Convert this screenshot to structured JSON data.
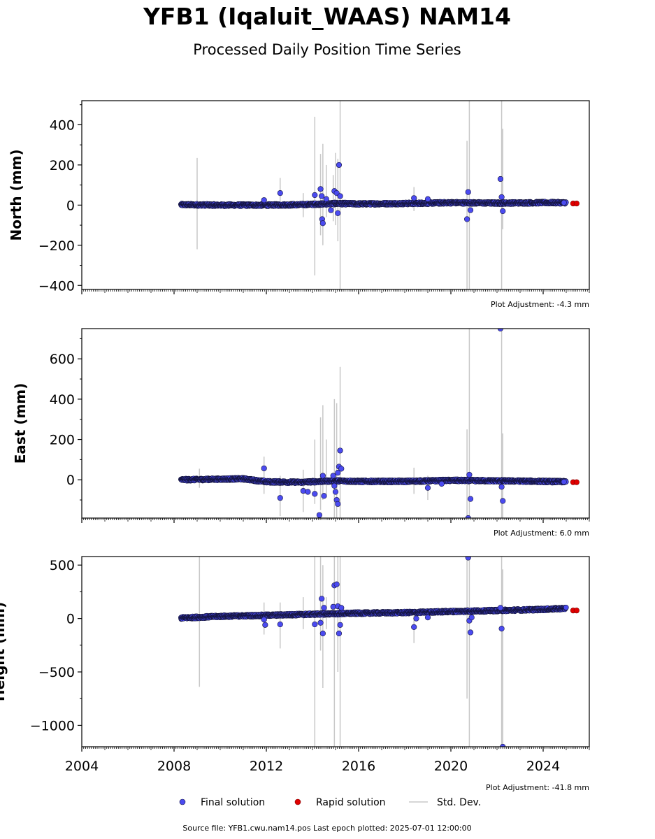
{
  "title": "YFB1 (Iqaluit_WAAS) NAM14",
  "subtitle": "Processed Daily Position Time Series",
  "footer": "Source file: YFB1.cwu.nam14.pos  Last epoch plotted: 2025-07-01 12:00:00",
  "legend": {
    "final": "Final solution",
    "rapid": "Rapid solution",
    "stddev": "Std. Dev."
  },
  "colors": {
    "final": "#4b4bf0",
    "final_edge": "#14143c",
    "rapid": "#e00000",
    "stddev": "#c8c8c8"
  },
  "chart_data": [
    {
      "type": "scatter",
      "ylabel": "North (mm)",
      "adjustment": "Plot Adjustment: -4.3 mm",
      "xlim": [
        2004,
        2026
      ],
      "ylim": [
        -420,
        520
      ],
      "xticks": [
        2004,
        2008,
        2012,
        2016,
        2020,
        2024
      ],
      "xtick_labels": [],
      "yticks": [
        -400,
        -200,
        0,
        200,
        400
      ],
      "ytick_labels": [
        "−400",
        "−200",
        "0",
        "200",
        "400"
      ],
      "baseline": [
        [
          2008.3,
          2
        ],
        [
          2010,
          0
        ],
        [
          2012,
          0
        ],
        [
          2013.5,
          2
        ],
        [
          2015,
          8
        ],
        [
          2016,
          6
        ],
        [
          2018,
          8
        ],
        [
          2020,
          12
        ],
        [
          2022,
          10
        ],
        [
          2024,
          12
        ],
        [
          2025.0,
          12
        ]
      ],
      "final_outliers": [
        [
          2011.9,
          25
        ],
        [
          2012.6,
          60
        ],
        [
          2014.1,
          50
        ],
        [
          2014.35,
          80
        ],
        [
          2014.4,
          45
        ],
        [
          2014.42,
          -70
        ],
        [
          2014.45,
          -90
        ],
        [
          2014.6,
          30
        ],
        [
          2014.8,
          -25
        ],
        [
          2014.95,
          70
        ],
        [
          2015.05,
          60
        ],
        [
          2015.1,
          -40
        ],
        [
          2015.15,
          200
        ],
        [
          2015.2,
          45
        ],
        [
          2018.4,
          35
        ],
        [
          2019.0,
          30
        ],
        [
          2020.75,
          65
        ],
        [
          2020.7,
          -70
        ],
        [
          2020.85,
          -25
        ],
        [
          2022.15,
          130
        ],
        [
          2022.2,
          40
        ],
        [
          2022.25,
          -30
        ],
        [
          2024.9,
          12
        ]
      ],
      "rapid": [
        [
          2025.3,
          8
        ],
        [
          2025.45,
          8
        ]
      ],
      "stddev": [
        [
          2009.0,
          -220,
          235
        ],
        [
          2012.6,
          20,
          135
        ],
        [
          2013.6,
          -60,
          60
        ],
        [
          2014.1,
          -350,
          440
        ],
        [
          2014.35,
          -150,
          255
        ],
        [
          2014.45,
          -200,
          305
        ],
        [
          2014.6,
          -60,
          200
        ],
        [
          2014.9,
          -80,
          150
        ],
        [
          2015.0,
          -100,
          260
        ],
        [
          2015.1,
          -180,
          230
        ],
        [
          2015.2,
          -420,
          520
        ],
        [
          2018.4,
          -30,
          90
        ],
        [
          2020.7,
          -420,
          320
        ],
        [
          2020.8,
          -420,
          520
        ],
        [
          2022.2,
          -420,
          520
        ],
        [
          2022.25,
          -120,
          380
        ]
      ]
    },
    {
      "type": "scatter",
      "ylabel": "East (mm)",
      "adjustment": "Plot Adjustment: 6.0 mm",
      "xlim": [
        2004,
        2026
      ],
      "ylim": [
        -190,
        750
      ],
      "xticks": [
        2004,
        2008,
        2012,
        2016,
        2020,
        2024
      ],
      "xtick_labels": [],
      "yticks": [
        0,
        200,
        400,
        600
      ],
      "ytick_labels": [
        "0",
        "200",
        "400",
        "600"
      ],
      "baseline": [
        [
          2008.3,
          0
        ],
        [
          2010,
          3
        ],
        [
          2011,
          5
        ],
        [
          2012,
          -10
        ],
        [
          2013.5,
          -12
        ],
        [
          2015,
          -5
        ],
        [
          2016,
          -8
        ],
        [
          2018,
          -8
        ],
        [
          2020,
          -3
        ],
        [
          2022,
          -5
        ],
        [
          2024,
          -8
        ],
        [
          2025.0,
          -10
        ]
      ],
      "final_outliers": [
        [
          2011.9,
          57
        ],
        [
          2012.6,
          -90
        ],
        [
          2013.6,
          -55
        ],
        [
          2013.8,
          -60
        ],
        [
          2014.1,
          -70
        ],
        [
          2014.3,
          -175
        ],
        [
          2014.45,
          20
        ],
        [
          2014.5,
          -80
        ],
        [
          2014.9,
          20
        ],
        [
          2014.95,
          -30
        ],
        [
          2015.0,
          -60
        ],
        [
          2015.05,
          -100
        ],
        [
          2015.1,
          35
        ],
        [
          2015.15,
          65
        ],
        [
          2015.2,
          145
        ],
        [
          2015.25,
          55
        ],
        [
          2015.1,
          -120
        ],
        [
          2019.0,
          -40
        ],
        [
          2019.6,
          -20
        ],
        [
          2020.75,
          -190
        ],
        [
          2020.8,
          25
        ],
        [
          2020.85,
          -95
        ],
        [
          2022.15,
          750
        ],
        [
          2022.2,
          -35
        ],
        [
          2022.25,
          -105
        ],
        [
          2024.9,
          -10
        ]
      ],
      "rapid": [
        [
          2025.3,
          -12
        ],
        [
          2025.45,
          -12
        ]
      ],
      "stddev": [
        [
          2009.1,
          -40,
          55
        ],
        [
          2011.9,
          -70,
          115
        ],
        [
          2012.6,
          -180,
          20
        ],
        [
          2013.6,
          -160,
          50
        ],
        [
          2014.1,
          -120,
          200
        ],
        [
          2014.35,
          -150,
          310
        ],
        [
          2014.45,
          -100,
          370
        ],
        [
          2014.6,
          -80,
          200
        ],
        [
          2014.95,
          -190,
          400
        ],
        [
          2015.05,
          -190,
          380
        ],
        [
          2015.2,
          -190,
          560
        ],
        [
          2018.4,
          -70,
          60
        ],
        [
          2019.0,
          -100,
          20
        ],
        [
          2020.7,
          -190,
          250
        ],
        [
          2020.8,
          -190,
          750
        ],
        [
          2022.2,
          -190,
          750
        ],
        [
          2022.25,
          -190,
          230
        ]
      ]
    },
    {
      "type": "scatter",
      "ylabel": "Height (mm)",
      "adjustment": "Plot Adjustment: -41.8 mm",
      "xlim": [
        2004,
        2026
      ],
      "ylim": [
        -1200,
        580
      ],
      "xticks": [
        2004,
        2008,
        2012,
        2016,
        2020,
        2024
      ],
      "xtick_labels": [
        "2004",
        "2008",
        "2012",
        "2016",
        "2020",
        "2024"
      ],
      "yticks": [
        -1000,
        -500,
        0,
        500
      ],
      "ytick_labels": [
        "−1000",
        "−500",
        "0",
        "500"
      ],
      "baseline": [
        [
          2008.3,
          5
        ],
        [
          2010,
          20
        ],
        [
          2012,
          30
        ],
        [
          2014,
          40
        ],
        [
          2016,
          50
        ],
        [
          2018,
          55
        ],
        [
          2020,
          65
        ],
        [
          2022,
          75
        ],
        [
          2024,
          85
        ],
        [
          2025.0,
          95
        ]
      ],
      "final_outliers": [
        [
          2011.9,
          -10
        ],
        [
          2011.95,
          -60
        ],
        [
          2012.6,
          -55
        ],
        [
          2014.1,
          -55
        ],
        [
          2014.35,
          -40
        ],
        [
          2014.4,
          185
        ],
        [
          2014.45,
          -140
        ],
        [
          2014.5,
          100
        ],
        [
          2014.9,
          110
        ],
        [
          2014.95,
          310
        ],
        [
          2015.05,
          320
        ],
        [
          2015.1,
          115
        ],
        [
          2015.15,
          -140
        ],
        [
          2015.2,
          -60
        ],
        [
          2015.25,
          100
        ],
        [
          2018.4,
          -80
        ],
        [
          2018.5,
          0
        ],
        [
          2019.0,
          10
        ],
        [
          2020.75,
          570
        ],
        [
          2020.8,
          -20
        ],
        [
          2020.85,
          -130
        ],
        [
          2020.9,
          10
        ],
        [
          2022.15,
          100
        ],
        [
          2022.2,
          -95
        ],
        [
          2022.25,
          -1200
        ]
      ],
      "rapid": [
        [
          2025.3,
          75
        ],
        [
          2025.45,
          75
        ]
      ],
      "stddev": [
        [
          2009.1,
          -640,
          580
        ],
        [
          2011.9,
          -150,
          150
        ],
        [
          2012.6,
          -280,
          150
        ],
        [
          2013.6,
          -100,
          200
        ],
        [
          2014.1,
          -1200,
          580
        ],
        [
          2014.35,
          -300,
          580
        ],
        [
          2014.45,
          -650,
          500
        ],
        [
          2014.6,
          -100,
          200
        ],
        [
          2014.95,
          -1200,
          580
        ],
        [
          2015.1,
          -500,
          580
        ],
        [
          2015.2,
          -1200,
          580
        ],
        [
          2018.4,
          -230,
          60
        ],
        [
          2020.7,
          -750,
          580
        ],
        [
          2020.8,
          -1200,
          580
        ],
        [
          2022.2,
          -1200,
          580
        ],
        [
          2022.25,
          -1200,
          460
        ]
      ]
    }
  ]
}
